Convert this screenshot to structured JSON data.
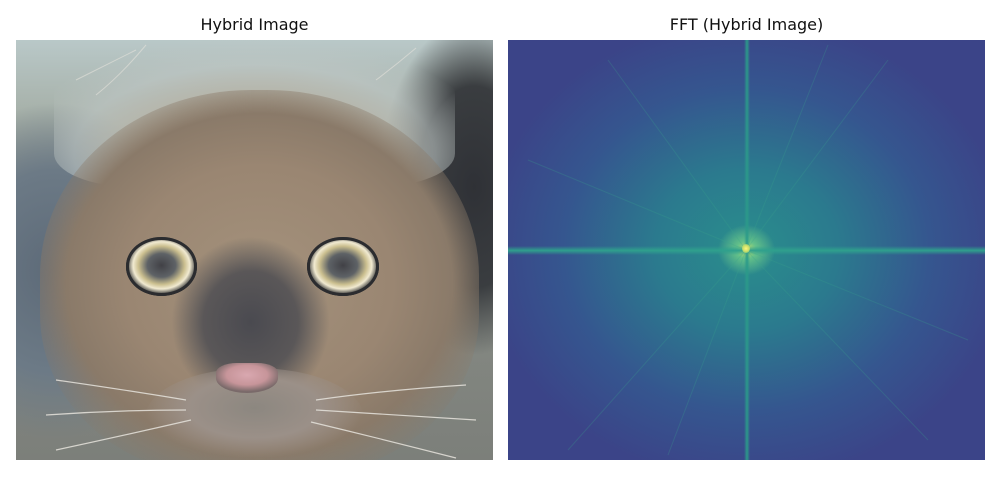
{
  "panels": {
    "left": {
      "title": "Hybrid Image"
    },
    "right": {
      "title": "FFT (Hybrid Image)"
    }
  },
  "colors": {
    "fft_low": "#3b4488",
    "fft_mid": "#2b7a8e",
    "fft_high": "#fff57a"
  }
}
